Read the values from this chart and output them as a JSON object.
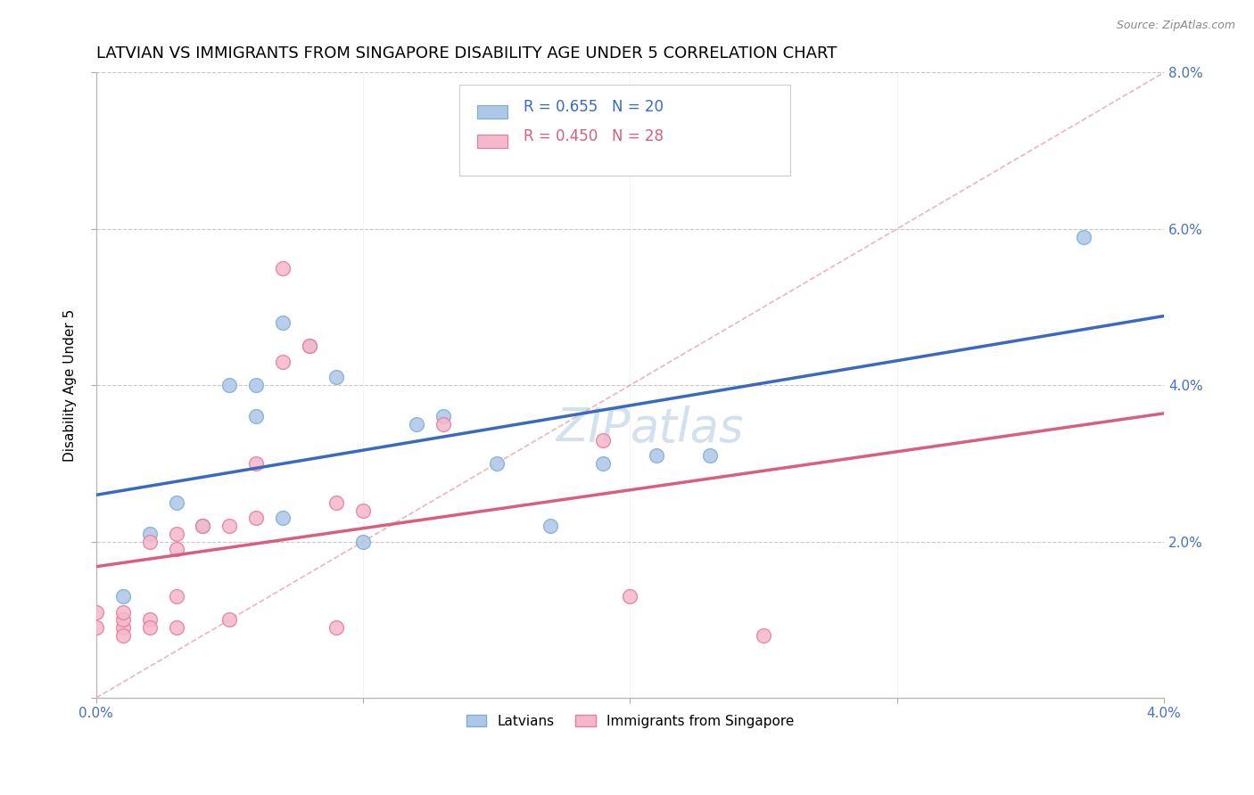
{
  "title": "LATVIAN VS IMMIGRANTS FROM SINGAPORE DISABILITY AGE UNDER 5 CORRELATION CHART",
  "source": "Source: ZipAtlas.com",
  "ylabel": "Disability Age Under 5",
  "xlim": [
    0.0,
    0.04
  ],
  "ylim": [
    0.0,
    0.08
  ],
  "xticks": [
    0.0,
    0.01,
    0.02,
    0.03,
    0.04
  ],
  "yticks": [
    0.0,
    0.02,
    0.04,
    0.06,
    0.08
  ],
  "ytick_labels": [
    "",
    "2.0%",
    "4.0%",
    "6.0%",
    "8.0%"
  ],
  "latvian_color": "#aec6e8",
  "latvian_edge_color": "#7aafd4",
  "singapore_color": "#f5b8cb",
  "singapore_edge_color": "#e87a9f",
  "latvian_line_color": "#3a6abf",
  "singapore_line_color": "#d95f7f",
  "diagonal_color": "#e8a0b0",
  "grid_color": "#c8c8c8",
  "R_latvian": 0.655,
  "N_latvian": 20,
  "R_singapore": 0.45,
  "N_singapore": 28,
  "latvian_x": [
    0.001,
    0.002,
    0.003,
    0.004,
    0.005,
    0.006,
    0.006,
    0.007,
    0.007,
    0.008,
    0.009,
    0.01,
    0.012,
    0.013,
    0.015,
    0.017,
    0.019,
    0.021,
    0.023,
    0.037
  ],
  "latvian_y": [
    0.013,
    0.021,
    0.025,
    0.022,
    0.04,
    0.036,
    0.04,
    0.023,
    0.048,
    0.045,
    0.041,
    0.02,
    0.035,
    0.036,
    0.03,
    0.022,
    0.03,
    0.031,
    0.031,
    0.059
  ],
  "singapore_x": [
    0.0,
    0.0,
    0.001,
    0.001,
    0.001,
    0.001,
    0.002,
    0.002,
    0.002,
    0.003,
    0.003,
    0.003,
    0.003,
    0.004,
    0.005,
    0.005,
    0.006,
    0.006,
    0.007,
    0.007,
    0.008,
    0.009,
    0.009,
    0.01,
    0.013,
    0.019,
    0.02,
    0.025
  ],
  "singapore_y": [
    0.009,
    0.011,
    0.009,
    0.01,
    0.008,
    0.011,
    0.02,
    0.01,
    0.009,
    0.019,
    0.021,
    0.009,
    0.013,
    0.022,
    0.022,
    0.01,
    0.03,
    0.023,
    0.055,
    0.043,
    0.045,
    0.025,
    0.009,
    0.024,
    0.035,
    0.033,
    0.013,
    0.008
  ],
  "marker_size": 130,
  "title_fontsize": 13,
  "label_fontsize": 11,
  "tick_fontsize": 11,
  "legend_fontsize": 13,
  "watermark_color": "#b0c8e0",
  "watermark_fontsize": 38
}
